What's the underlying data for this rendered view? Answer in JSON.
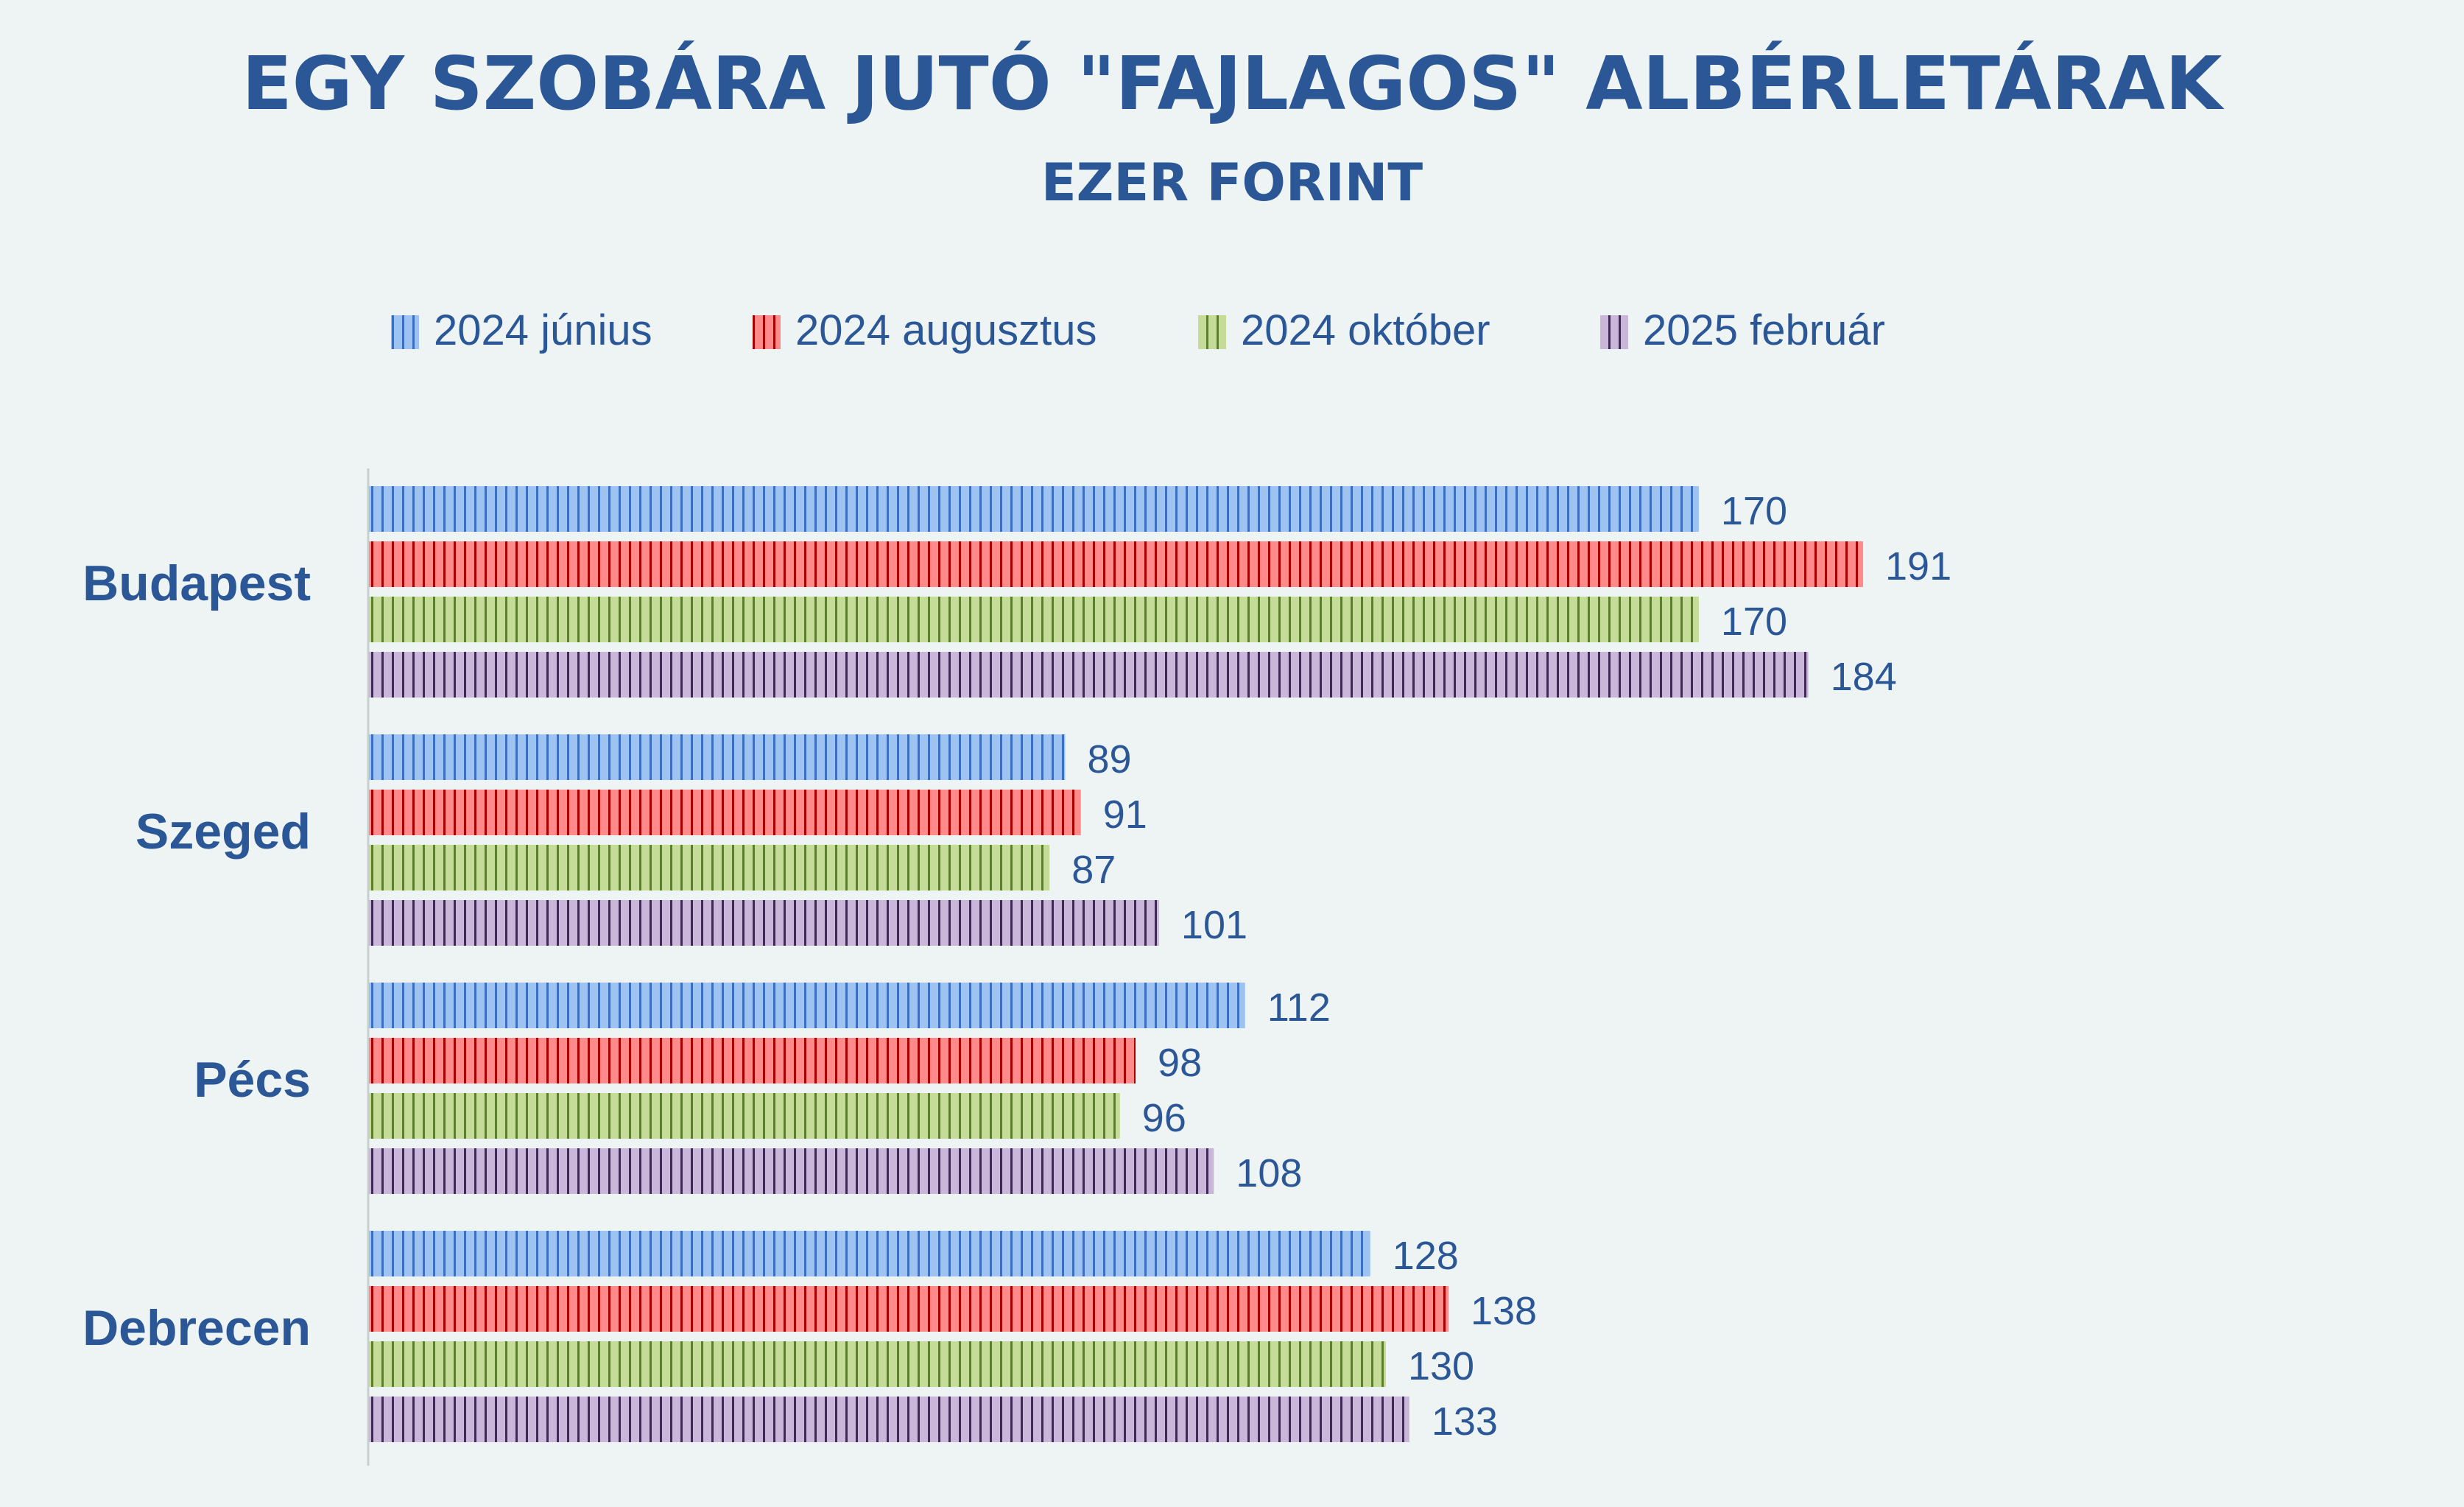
{
  "chart_data": {
    "type": "bar",
    "orientation": "horizontal",
    "title": "EGY SZOBÁRA JUTÓ \"FAJLAGOS\" ALBÉRLETÁRAK",
    "subtitle": "EZER FORINT",
    "categories": [
      "Budapest",
      "Szeged",
      "Pécs",
      "Debrecen"
    ],
    "series": [
      {
        "name": "2024 június",
        "color": "#9ec3f0",
        "stripe": "#3a6fc4",
        "values": [
          170,
          89,
          112,
          128
        ]
      },
      {
        "name": "2024 augusztus",
        "color": "#ff8a8a",
        "stripe": "#a80000",
        "values": [
          191,
          91,
          98,
          138
        ]
      },
      {
        "name": "2024 október",
        "color": "#c5db98",
        "stripe": "#5c7f2e",
        "values": [
          170,
          87,
          96,
          130
        ]
      },
      {
        "name": "2025 február",
        "color": "#c9b6d8",
        "stripe": "#3e2a55",
        "values": [
          184,
          101,
          108,
          133
        ]
      }
    ],
    "xlim": [
      0,
      200
    ],
    "grid": false,
    "legend": "top",
    "data_labels": true,
    "text_color": "#2b5797"
  }
}
